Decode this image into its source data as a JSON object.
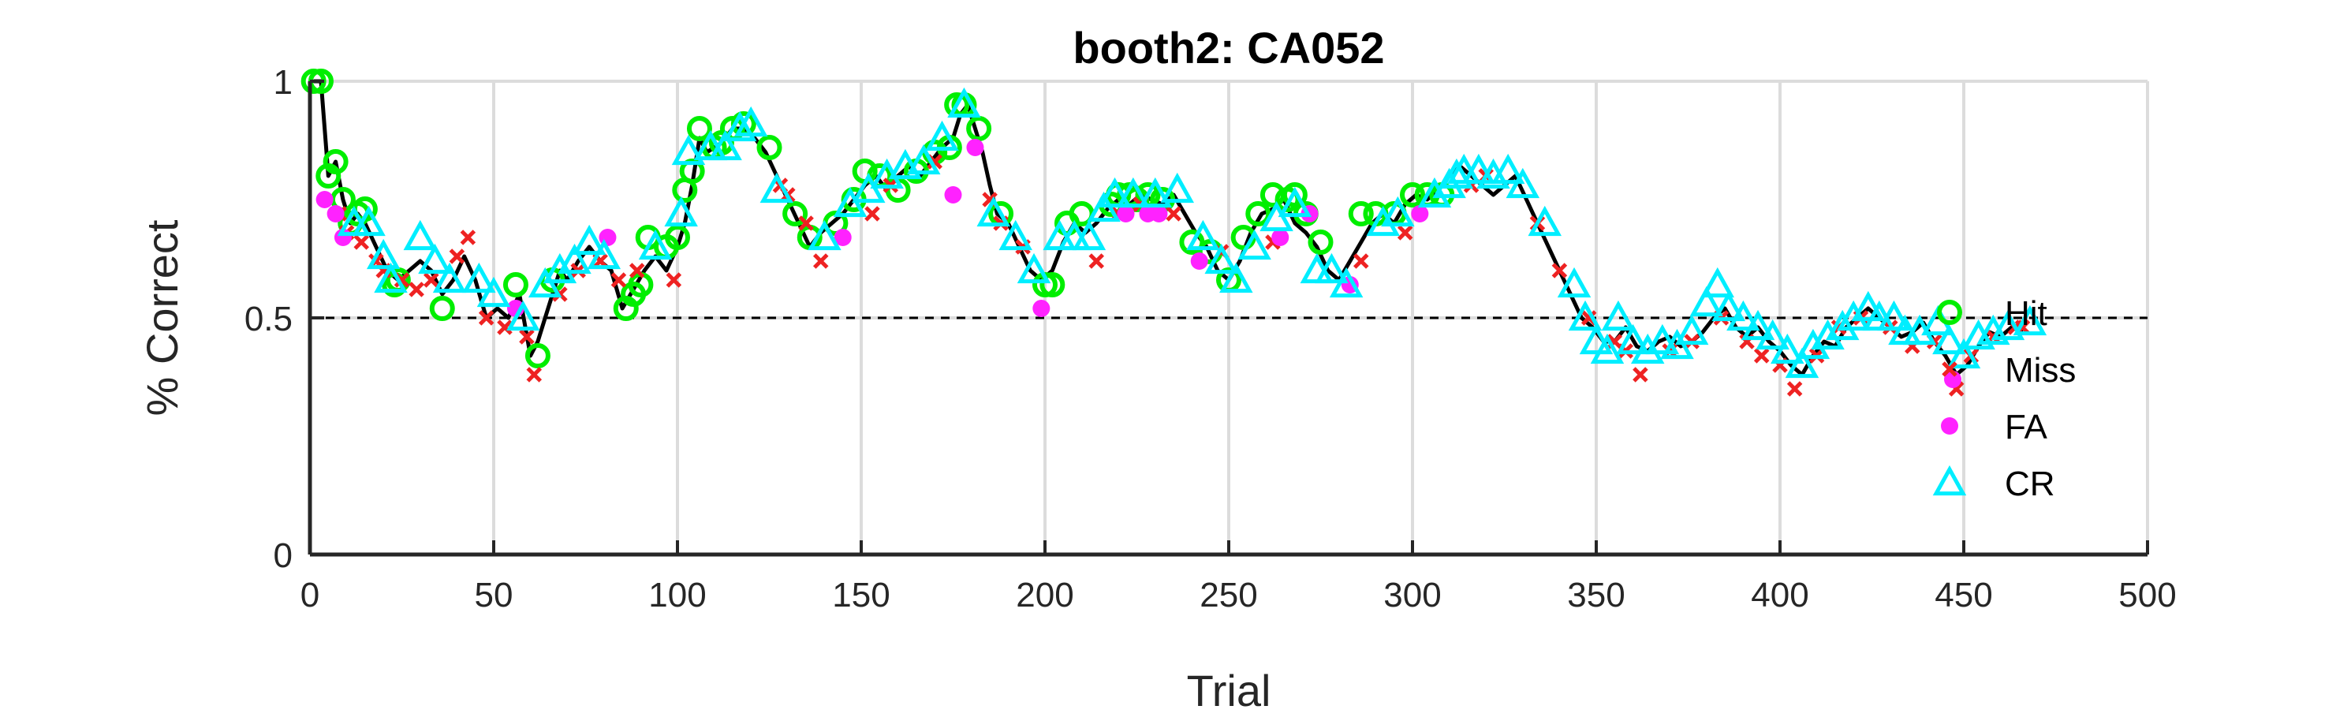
{
  "chart_data": {
    "type": "scatter",
    "title": "booth2: CA052",
    "xlabel": "Trial",
    "ylabel": "% Correct",
    "xlim": [
      0,
      500
    ],
    "ylim": [
      0,
      1
    ],
    "xticks": [
      0,
      50,
      100,
      150,
      200,
      250,
      300,
      350,
      400,
      450,
      500
    ],
    "xtick_labels": [
      "0",
      "50",
      "100",
      "150",
      "200",
      "250",
      "300",
      "350",
      "400",
      "450",
      "500"
    ],
    "yticks": [
      0,
      0.5,
      1
    ],
    "ytick_labels": [
      "0",
      "0.5",
      "1"
    ],
    "grid": true,
    "legend_position": "right",
    "reference_line": {
      "y": 0.5,
      "style": "dashed",
      "color": "#000000"
    },
    "performance_line": {
      "name": "",
      "color": "#000000",
      "x": [
        1,
        3,
        5,
        7,
        9,
        11,
        13,
        15,
        18,
        21,
        24,
        27,
        30,
        33,
        36,
        39,
        42,
        45,
        48,
        51,
        54,
        57,
        60,
        62,
        64,
        66,
        68,
        70,
        73,
        76,
        79,
        82,
        85,
        88,
        91,
        94,
        97,
        100,
        102,
        104,
        106,
        108,
        110,
        112,
        115,
        118,
        121,
        124,
        127,
        130,
        133,
        136,
        139,
        142,
        145,
        148,
        151,
        154,
        157,
        160,
        163,
        166,
        169,
        172,
        175,
        177,
        179,
        181,
        183,
        185,
        187,
        190,
        193,
        196,
        199,
        202,
        205,
        208,
        211,
        214,
        217,
        220,
        223,
        226,
        229,
        232,
        235,
        238,
        241,
        244,
        247,
        250,
        253,
        256,
        259,
        262,
        265,
        268,
        271,
        274,
        277,
        280,
        283,
        286,
        289,
        292,
        295,
        298,
        301,
        304,
        307,
        310,
        313,
        316,
        319,
        322,
        325,
        328,
        331,
        334,
        337,
        340,
        343,
        346,
        349,
        352,
        355,
        358,
        361,
        364,
        367,
        370,
        373,
        376,
        379,
        382,
        385,
        388,
        391,
        394,
        397,
        400,
        403,
        406,
        409,
        412,
        415,
        418,
        421,
        424,
        427,
        430,
        433,
        436,
        439,
        442,
        445,
        448,
        451,
        454,
        457,
        460,
        463,
        466
      ],
      "y": [
        1.0,
        1.0,
        0.8,
        0.83,
        0.75,
        0.7,
        0.72,
        0.7,
        0.65,
        0.6,
        0.58,
        0.6,
        0.62,
        0.6,
        0.55,
        0.58,
        0.63,
        0.58,
        0.5,
        0.52,
        0.5,
        0.55,
        0.42,
        0.45,
        0.5,
        0.55,
        0.6,
        0.58,
        0.62,
        0.65,
        0.62,
        0.6,
        0.52,
        0.56,
        0.6,
        0.63,
        0.6,
        0.65,
        0.7,
        0.78,
        0.88,
        0.85,
        0.86,
        0.87,
        0.9,
        0.9,
        0.88,
        0.85,
        0.8,
        0.75,
        0.7,
        0.65,
        0.68,
        0.7,
        0.72,
        0.75,
        0.78,
        0.8,
        0.77,
        0.8,
        0.82,
        0.8,
        0.83,
        0.86,
        0.88,
        0.93,
        0.95,
        0.9,
        0.85,
        0.78,
        0.72,
        0.7,
        0.65,
        0.6,
        0.58,
        0.6,
        0.66,
        0.7,
        0.68,
        0.7,
        0.73,
        0.75,
        0.74,
        0.76,
        0.75,
        0.74,
        0.76,
        0.72,
        0.68,
        0.65,
        0.6,
        0.58,
        0.62,
        0.68,
        0.72,
        0.73,
        0.75,
        0.7,
        0.68,
        0.65,
        0.6,
        0.58,
        0.62,
        0.66,
        0.7,
        0.72,
        0.7,
        0.74,
        0.76,
        0.75,
        0.77,
        0.8,
        0.82,
        0.8,
        0.78,
        0.76,
        0.78,
        0.8,
        0.75,
        0.7,
        0.65,
        0.6,
        0.55,
        0.5,
        0.48,
        0.45,
        0.45,
        0.48,
        0.44,
        0.43,
        0.45,
        0.46,
        0.44,
        0.45,
        0.47,
        0.5,
        0.52,
        0.48,
        0.46,
        0.48,
        0.45,
        0.43,
        0.4,
        0.38,
        0.42,
        0.45,
        0.44,
        0.48,
        0.5,
        0.52,
        0.5,
        0.48,
        0.46,
        0.47,
        0.49,
        0.45,
        0.42,
        0.38,
        0.4,
        0.44,
        0.47,
        0.46,
        0.48,
        0.47
      ]
    },
    "series": [
      {
        "name": "Hit",
        "marker": "circle-open",
        "color": "#00ee00",
        "x": [
          1,
          3,
          5,
          7,
          9,
          11,
          13,
          15,
          23,
          24,
          36,
          56,
          62,
          66,
          86,
          88,
          90,
          92,
          97,
          100,
          102,
          104,
          106,
          110,
          112,
          115,
          118,
          125,
          132,
          136,
          143,
          148,
          151,
          155,
          160,
          165,
          170,
          174,
          176,
          178,
          182,
          188,
          200,
          202,
          206,
          210,
          218,
          220,
          223,
          225,
          228,
          232,
          240,
          245,
          250,
          254,
          258,
          262,
          266,
          268,
          271,
          275,
          286,
          290,
          295,
          300,
          304,
          308
        ],
        "y": [
          1.0,
          1.0,
          0.8,
          0.83,
          0.75,
          0.7,
          0.72,
          0.73,
          0.57,
          0.58,
          0.52,
          0.57,
          0.42,
          0.58,
          0.52,
          0.55,
          0.57,
          0.67,
          0.65,
          0.67,
          0.77,
          0.81,
          0.9,
          0.86,
          0.87,
          0.9,
          0.91,
          0.86,
          0.72,
          0.67,
          0.7,
          0.75,
          0.81,
          0.8,
          0.77,
          0.81,
          0.85,
          0.86,
          0.95,
          0.95,
          0.9,
          0.72,
          0.57,
          0.57,
          0.7,
          0.72,
          0.74,
          0.76,
          0.76,
          0.75,
          0.76,
          0.75,
          0.66,
          0.64,
          0.58,
          0.67,
          0.72,
          0.76,
          0.75,
          0.76,
          0.72,
          0.66,
          0.72,
          0.72,
          0.72,
          0.76,
          0.76,
          0.76
        ]
      },
      {
        "name": "Miss",
        "marker": "x",
        "color": "#ee2222",
        "x": [
          8,
          10,
          14,
          18,
          20,
          25,
          29,
          33,
          40,
          43,
          48,
          53,
          59,
          61,
          68,
          73,
          79,
          84,
          89,
          99,
          128,
          130,
          135,
          139,
          153,
          158,
          170,
          185,
          188,
          194,
          214,
          220,
          226,
          235,
          248,
          262,
          286,
          298,
          316,
          320,
          334,
          340,
          348,
          355,
          358,
          362,
          370,
          376,
          384,
          391,
          395,
          400,
          404,
          410,
          416,
          422,
          430,
          436,
          442,
          448,
          452,
          458,
          464,
          466
        ],
        "y": [
          0.72,
          0.68,
          0.66,
          0.62,
          0.6,
          0.58,
          0.56,
          0.58,
          0.63,
          0.67,
          0.5,
          0.48,
          0.46,
          0.38,
          0.55,
          0.6,
          0.62,
          0.58,
          0.6,
          0.58,
          0.78,
          0.76,
          0.7,
          0.62,
          0.72,
          0.78,
          0.83,
          0.75,
          0.7,
          0.65,
          0.62,
          0.72,
          0.74,
          0.72,
          0.64,
          0.66,
          0.62,
          0.68,
          0.78,
          0.8,
          0.7,
          0.6,
          0.5,
          0.45,
          0.43,
          0.38,
          0.43,
          0.45,
          0.5,
          0.45,
          0.42,
          0.4,
          0.35,
          0.42,
          0.48,
          0.5,
          0.48,
          0.44,
          0.45,
          0.35,
          0.42,
          0.46,
          0.48,
          0.48
        ]
      },
      {
        "name": "FA",
        "marker": "dot",
        "color": "#ff22ff",
        "x": [
          4,
          7,
          9,
          56,
          81,
          145,
          175,
          181,
          199,
          222,
          228,
          231,
          242,
          264,
          272,
          283,
          302,
          447
        ],
        "y": [
          0.75,
          0.72,
          0.67,
          0.52,
          0.67,
          0.67,
          0.76,
          0.86,
          0.52,
          0.72,
          0.72,
          0.72,
          0.62,
          0.67,
          0.72,
          0.57,
          0.72,
          0.37
        ]
      },
      {
        "name": "CR",
        "marker": "triangle-open",
        "color": "#00eeff",
        "x": [
          12,
          16,
          20,
          22,
          30,
          34,
          38,
          46,
          50,
          58,
          64,
          68,
          72,
          76,
          80,
          94,
          101,
          103,
          109,
          113,
          117,
          120,
          127,
          140,
          147,
          152,
          157,
          162,
          167,
          172,
          178,
          186,
          192,
          197,
          204,
          208,
          212,
          216,
          219,
          224,
          230,
          236,
          243,
          248,
          252,
          257,
          263,
          268,
          274,
          278,
          282,
          292,
          296,
          306,
          310,
          312,
          314,
          318,
          322,
          326,
          330,
          336,
          344,
          347,
          350,
          353,
          356,
          360,
          364,
          368,
          372,
          376,
          380,
          383,
          386,
          390,
          394,
          398,
          402,
          406,
          409,
          413,
          417,
          420,
          424,
          427,
          431,
          434,
          438,
          443,
          446,
          450,
          454,
          458,
          462,
          468
        ],
        "y": [
          0.7,
          0.7,
          0.63,
          0.58,
          0.67,
          0.62,
          0.58,
          0.58,
          0.55,
          0.5,
          0.57,
          0.6,
          0.62,
          0.66,
          0.63,
          0.65,
          0.72,
          0.85,
          0.86,
          0.86,
          0.9,
          0.91,
          0.77,
          0.67,
          0.74,
          0.77,
          0.8,
          0.82,
          0.83,
          0.88,
          0.95,
          0.72,
          0.67,
          0.6,
          0.67,
          0.67,
          0.67,
          0.73,
          0.76,
          0.76,
          0.76,
          0.77,
          0.67,
          0.62,
          0.58,
          0.65,
          0.71,
          0.74,
          0.6,
          0.6,
          0.57,
          0.7,
          0.72,
          0.76,
          0.78,
          0.8,
          0.81,
          0.81,
          0.8,
          0.81,
          0.78,
          0.7,
          0.57,
          0.5,
          0.45,
          0.43,
          0.5,
          0.45,
          0.43,
          0.45,
          0.44,
          0.47,
          0.53,
          0.57,
          0.52,
          0.5,
          0.48,
          0.46,
          0.43,
          0.4,
          0.44,
          0.46,
          0.48,
          0.5,
          0.52,
          0.5,
          0.5,
          0.47,
          0.47,
          0.49,
          0.45,
          0.42,
          0.46,
          0.47,
          0.48,
          0.49
        ]
      }
    ]
  }
}
